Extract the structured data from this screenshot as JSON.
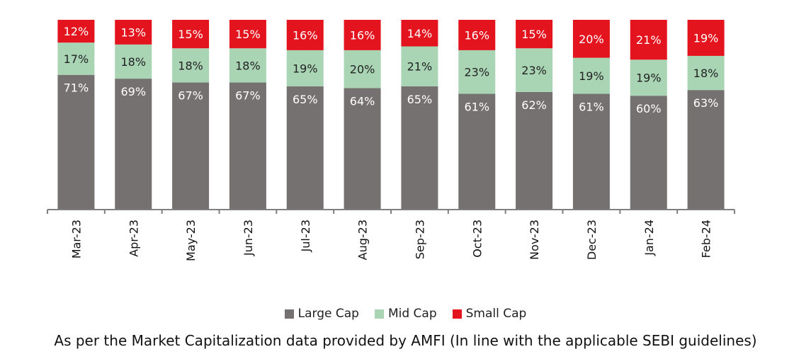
{
  "chart_data": {
    "type": "bar",
    "stacked": true,
    "categories": [
      "Mar-23",
      "Apr-23",
      "May-23",
      "Jun-23",
      "Jul-23",
      "Aug-23",
      "Sep-23",
      "Oct-23",
      "Nov-23",
      "Dec-23",
      "Jan-24",
      "Feb-24"
    ],
    "series": [
      {
        "name": "Large Cap",
        "color": "#767171",
        "label_color": "#ffffff",
        "values": [
          71,
          69,
          67,
          67,
          65,
          64,
          65,
          61,
          62,
          61,
          60,
          63
        ]
      },
      {
        "name": "Mid Cap",
        "color": "#a9d5b5",
        "label_color": "#222222",
        "values": [
          17,
          18,
          18,
          18,
          19,
          20,
          21,
          23,
          23,
          19,
          19,
          18
        ]
      },
      {
        "name": "Small Cap",
        "color": "#e3141e",
        "label_color": "#ffffff",
        "values": [
          12,
          13,
          15,
          15,
          16,
          16,
          14,
          16,
          15,
          20,
          21,
          19
        ]
      }
    ],
    "value_suffix": "%",
    "title": "",
    "xlabel": "",
    "ylabel": "",
    "ylim": [
      0,
      100
    ],
    "grid": false,
    "legend_position": "bottom"
  },
  "footnote": "As per the Market Capitalization data provided by AMFI (In line with the applicable SEBI guidelines)"
}
